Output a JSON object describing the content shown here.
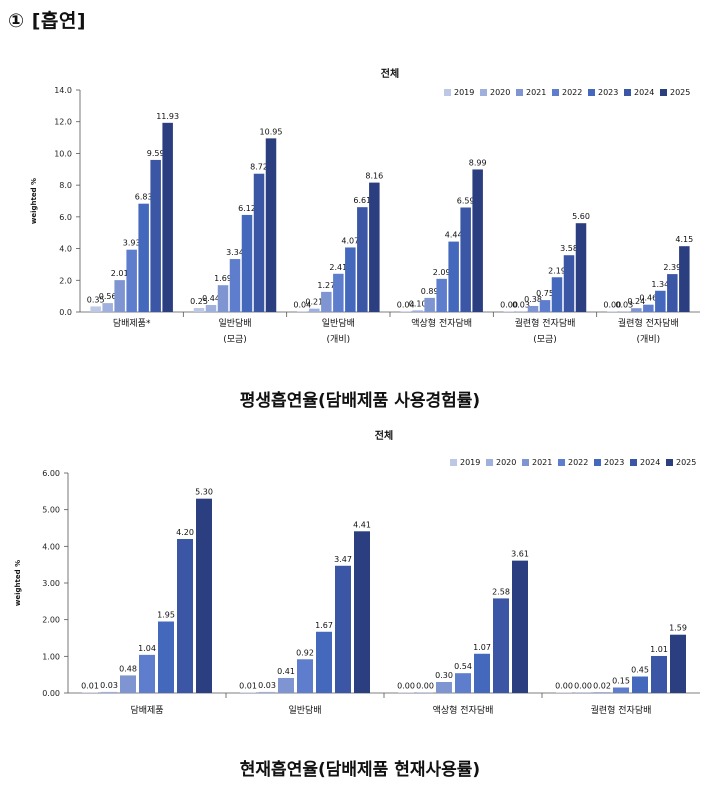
{
  "heading": "① [흡연]",
  "charts": [
    {
      "type": "bar",
      "title": "전체",
      "ylabel": "weighted %",
      "ylim": [
        0,
        14
      ],
      "yticks": [
        "0.0",
        "2.0",
        "4.0",
        "6.0",
        "8.0",
        "10.0",
        "12.0",
        "14.0"
      ],
      "legend_position": "top-right",
      "categories": [
        [
          "담배제품*"
        ],
        [
          "일반담배",
          "(모금)"
        ],
        [
          "일반담배",
          "(개비)"
        ],
        [
          "액상형 전자담배"
        ],
        [
          "궐련형 전자담배",
          "(모금)"
        ],
        [
          "궐련형 전자담배",
          "(개비)"
        ]
      ],
      "series": [
        {
          "name": "2019",
          "color": "#bdc7e6",
          "values": [
            0.35,
            0.25,
            0.04,
            0.04,
            0.0,
            0.0
          ],
          "labels": [
            "0.35",
            "0.25",
            "0.04",
            "0.04",
            "0.00",
            "0.00"
          ]
        },
        {
          "name": "2020",
          "color": "#9fb0de",
          "values": [
            0.56,
            0.44,
            0.21,
            0.1,
            0.03,
            0.03
          ],
          "labels": [
            "0.56",
            "0.44",
            "0.21",
            "0.10",
            "0.03",
            "0.03"
          ]
        },
        {
          "name": "2021",
          "color": "#7f95d2",
          "values": [
            2.01,
            1.69,
            1.27,
            0.89,
            0.38,
            0.24
          ],
          "labels": [
            "2.01",
            "1.69",
            "1.27",
            "0.89",
            "0.38",
            "0.24"
          ]
        },
        {
          "name": "2022",
          "color": "#5e7dcc",
          "values": [
            3.93,
            3.34,
            2.41,
            2.09,
            0.75,
            0.46
          ],
          "labels": [
            "3.93",
            "3.34",
            "2.41",
            "2.09",
            "0.75",
            "0.46"
          ]
        },
        {
          "name": "2023",
          "color": "#4468bb",
          "values": [
            6.83,
            6.12,
            4.07,
            4.44,
            2.19,
            1.34
          ],
          "labels": [
            "6.83",
            "6.12",
            "4.07",
            "4.44",
            "2.19",
            "1.34"
          ]
        },
        {
          "name": "2024",
          "color": "#3a56a4",
          "values": [
            9.59,
            8.72,
            6.61,
            6.59,
            3.58,
            2.39
          ],
          "labels": [
            "9.59",
            "8.72",
            "6.61",
            "6.59",
            "3.58",
            "2.39"
          ]
        },
        {
          "name": "2025",
          "color": "#2b3f80",
          "values": [
            11.93,
            10.95,
            8.16,
            8.99,
            5.6,
            4.15
          ],
          "labels": [
            "11.93",
            "10.95",
            "8.16",
            "8.99",
            "5.60",
            "4.15"
          ]
        }
      ],
      "caption": "평생흡연율(담배제품 사용경험률)"
    },
    {
      "type": "bar",
      "title": "전체",
      "ylabel": "weighted %",
      "ylim": [
        0,
        6
      ],
      "yticks": [
        "0.00",
        "1.00",
        "2.00",
        "3.00",
        "4.00",
        "5.00",
        "6.00"
      ],
      "legend_position": "top-right",
      "categories": [
        [
          "담배제품"
        ],
        [
          "일반담배"
        ],
        [
          "액상형 전자담배"
        ],
        [
          "궐련형 전자담배"
        ]
      ],
      "series": [
        {
          "name": "2019",
          "color": "#bdc7e6",
          "values": [
            0.01,
            0.01,
            0.0,
            0.0
          ],
          "labels": [
            "0.01",
            "0.01",
            "0.00",
            "0.00"
          ]
        },
        {
          "name": "2020",
          "color": "#9fb0de",
          "values": [
            0.03,
            0.03,
            0.0,
            0.0
          ],
          "labels": [
            "0.03",
            "0.03",
            "0.00",
            "0.00"
          ]
        },
        {
          "name": "2021",
          "color": "#7f95d2",
          "values": [
            0.48,
            0.41,
            0.3,
            0.02
          ],
          "labels": [
            "0.48",
            "0.41",
            "0.30",
            "0.02"
          ]
        },
        {
          "name": "2022",
          "color": "#5e7dcc",
          "values": [
            1.04,
            0.92,
            0.54,
            0.15
          ],
          "labels": [
            "1.04",
            "0.92",
            "0.54",
            "0.15"
          ]
        },
        {
          "name": "2023",
          "color": "#4468bb",
          "values": [
            1.95,
            1.67,
            1.07,
            0.45
          ],
          "labels": [
            "1.95",
            "1.67",
            "1.07",
            "0.45"
          ]
        },
        {
          "name": "2024",
          "color": "#3a56a4",
          "values": [
            4.2,
            3.47,
            2.58,
            1.01
          ],
          "labels": [
            "4.20",
            "3.47",
            "2.58",
            "1.01"
          ]
        },
        {
          "name": "2025",
          "color": "#2b3f80",
          "values": [
            5.3,
            4.41,
            3.61,
            1.59
          ],
          "labels": [
            "5.30",
            "4.41",
            "3.61",
            "1.59"
          ]
        }
      ],
      "caption": "현재흡연율(담배제품 현재사용률)"
    }
  ],
  "chart_data": [
    {
      "type": "bar",
      "title": "전체",
      "ylabel": "weighted %",
      "xlabel": "",
      "ylim": [
        0,
        14
      ],
      "categories": [
        "담배제품*",
        "일반담배 (모금)",
        "일반담배 (개비)",
        "액상형 전자담배",
        "궐련형 전자담배 (모금)",
        "궐련형 전자담배 (개비)"
      ],
      "series": [
        {
          "name": "2019",
          "values": [
            0.35,
            0.25,
            0.04,
            0.04,
            0.0,
            0.0
          ]
        },
        {
          "name": "2020",
          "values": [
            0.56,
            0.44,
            0.21,
            0.1,
            0.03,
            0.03
          ]
        },
        {
          "name": "2021",
          "values": [
            2.01,
            1.69,
            1.27,
            0.89,
            0.38,
            0.24
          ]
        },
        {
          "name": "2022",
          "values": [
            3.93,
            3.34,
            2.41,
            2.09,
            0.75,
            0.46
          ]
        },
        {
          "name": "2023",
          "values": [
            6.83,
            6.12,
            4.07,
            4.44,
            2.19,
            1.34
          ]
        },
        {
          "name": "2024",
          "values": [
            9.59,
            8.72,
            6.61,
            6.59,
            3.58,
            2.39
          ]
        },
        {
          "name": "2025",
          "values": [
            11.93,
            10.95,
            8.16,
            8.99,
            5.6,
            4.15
          ]
        }
      ],
      "grid": false,
      "legend": "top-right"
    },
    {
      "type": "bar",
      "title": "전체",
      "ylabel": "weighted %",
      "xlabel": "",
      "ylim": [
        0,
        6
      ],
      "categories": [
        "담배제품",
        "일반담배",
        "액상형 전자담배",
        "궐련형 전자담배"
      ],
      "series": [
        {
          "name": "2019",
          "values": [
            0.01,
            0.01,
            0.0,
            0.0
          ]
        },
        {
          "name": "2020",
          "values": [
            0.03,
            0.03,
            0.0,
            0.0
          ]
        },
        {
          "name": "2021",
          "values": [
            0.48,
            0.41,
            0.3,
            0.02
          ]
        },
        {
          "name": "2022",
          "values": [
            1.04,
            0.92,
            0.54,
            0.15
          ]
        },
        {
          "name": "2023",
          "values": [
            1.95,
            1.67,
            1.07,
            0.45
          ]
        },
        {
          "name": "2024",
          "values": [
            4.2,
            3.47,
            2.58,
            1.01
          ]
        },
        {
          "name": "2025",
          "values": [
            5.3,
            4.41,
            3.61,
            1.59
          ]
        }
      ],
      "grid": false,
      "legend": "top-right"
    }
  ]
}
